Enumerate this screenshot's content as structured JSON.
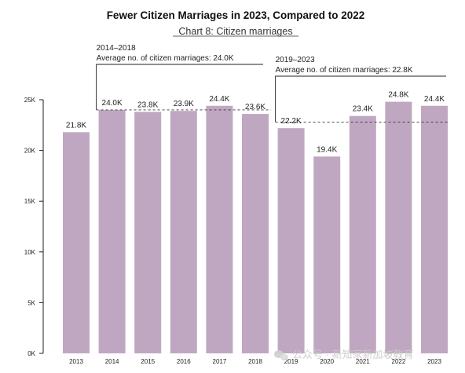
{
  "chart_data": {
    "type": "bar",
    "title": "Fewer Citizen Marriages in 2023, Compared to 2022",
    "subtitle": "Chart 8: Citizen marriages",
    "categories": [
      "2013",
      "2014",
      "2015",
      "2016",
      "2017",
      "2018",
      "2019",
      "2020",
      "2021",
      "2022",
      "2023"
    ],
    "values": [
      21.8,
      24.0,
      23.8,
      23.9,
      24.4,
      23.6,
      22.2,
      19.4,
      23.4,
      24.8,
      24.4
    ],
    "value_labels": [
      "21.8K",
      "24.0K",
      "23.8K",
      "23.9K",
      "24.4K",
      "23.6K",
      "22.2K",
      "19.4K",
      "23.4K",
      "24.8K",
      "24.4K"
    ],
    "unit": "K",
    "ylim": [
      0,
      25
    ],
    "yticks": [
      0,
      5,
      10,
      15,
      20,
      25
    ],
    "ytick_labels": [
      "0K",
      "5K",
      "10K",
      "15K",
      "20K",
      "25K"
    ],
    "bar_color": "#c0a7c1",
    "reference_periods": [
      {
        "range": "2014–2018",
        "caption": "Average no. of citizen marriages: 24.0K",
        "average": 24.0,
        "from": "2014",
        "to": "2018"
      },
      {
        "range": "2019–2023",
        "caption": "Average no. of citizen marriages: 22.8K",
        "average": 22.8,
        "from": "2019",
        "to": "2023"
      }
    ]
  },
  "watermark": {
    "text": "公众号 · 新知家新加坡教育",
    "icon": "wechat-icon"
  }
}
